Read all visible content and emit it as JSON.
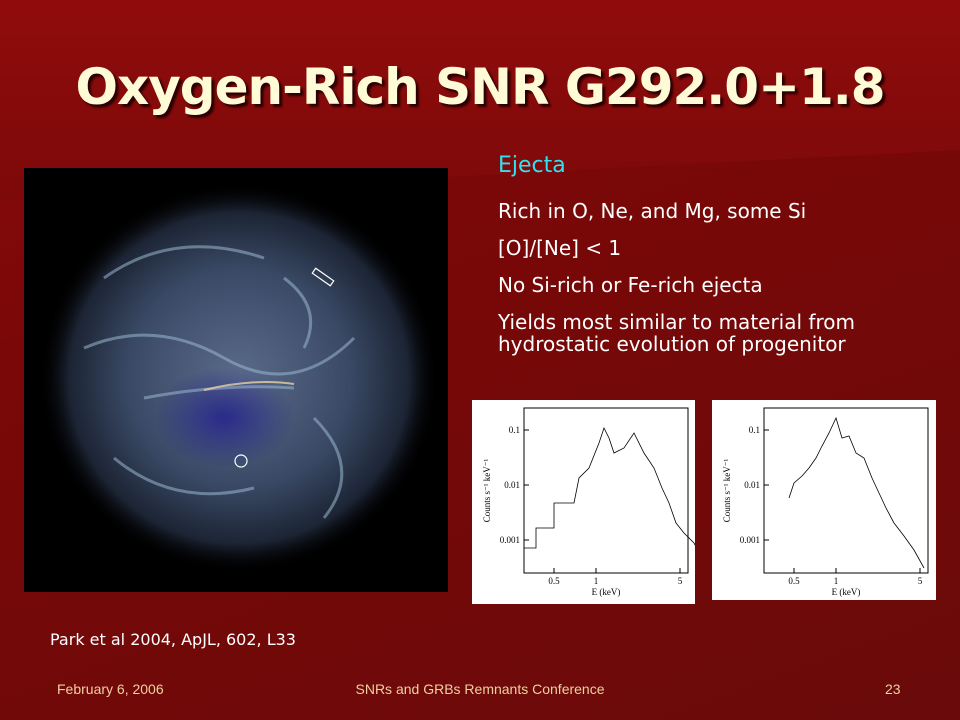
{
  "slide": {
    "title": "Oxygen-Rich SNR G292.0+1.8",
    "heading": "Ejecta",
    "bullets": [
      "Rich in O, Ne, and Mg, some Si",
      "[O]/[Ne] < 1",
      "No Si-rich or Fe-rich ejecta",
      "Yields most similar to material from hydrostatic evolution of progenitor"
    ],
    "citation": "Park et al 2004, ApJL, 602, L33",
    "spectra": [
      {
        "y_labels": [
          "0.1",
          "0.01",
          "0.001"
        ],
        "x_labels": [
          "0.5",
          "1",
          "5"
        ],
        "x_axis": "E (keV)",
        "y_axis": "Counts s⁻¹ keV⁻¹"
      },
      {
        "y_labels": [
          "0.1",
          "0.01",
          "0.001"
        ],
        "x_labels": [
          "0.5",
          "1",
          "5"
        ],
        "x_axis": "E (keV)",
        "y_axis": "Counts s⁻¹ keV⁻¹"
      }
    ],
    "footer": {
      "date": "February 6, 2006",
      "conference": "SNRs and GRBs Remnants Conference",
      "page": "23"
    }
  }
}
